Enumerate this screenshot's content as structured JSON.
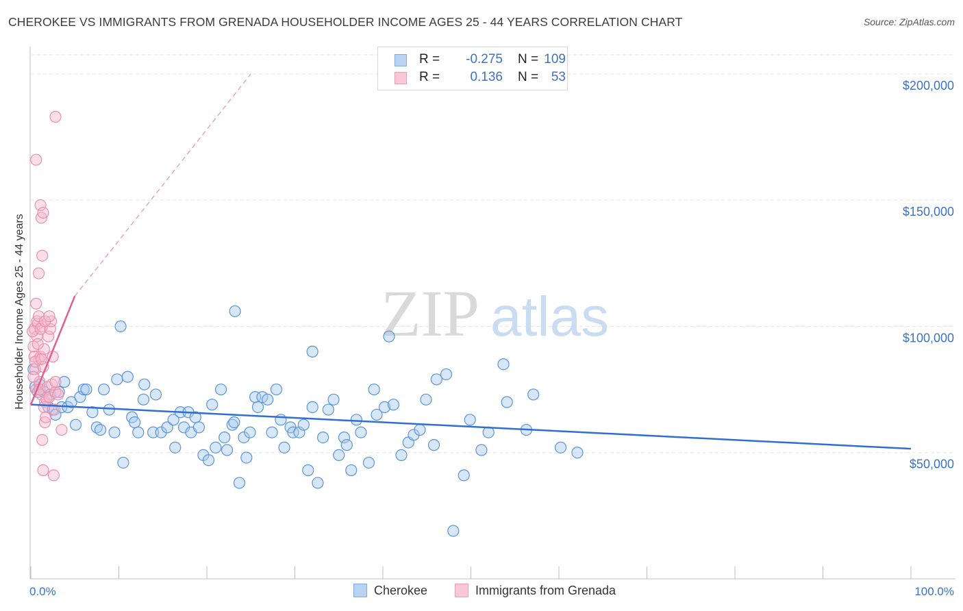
{
  "header": {
    "title": "CHEROKEE VS IMMIGRANTS FROM GRENADA HOUSEHOLDER INCOME AGES 25 - 44 YEARS CORRELATION CHART",
    "source": "Source: ZipAtlas.com"
  },
  "legend": {
    "rows": [
      {
        "r_label": "R =",
        "r_value": "-0.275",
        "n_label": "N =",
        "n_value": "109"
      },
      {
        "r_label": "R =",
        "r_value": "0.136",
        "n_label": "N =",
        "n_value": "53"
      }
    ]
  },
  "bottom_legend": {
    "series_a": "Cherokee",
    "series_b": "Immigrants from Grenada"
  },
  "watermark": {
    "zip": "ZIP",
    "atlas": "atlas"
  },
  "colors": {
    "blue_fill": "#a9c9ef",
    "blue_stroke": "#5a93d8",
    "blue_line": "#2f6fcf",
    "pink_fill": "#f6b8cb",
    "pink_stroke": "#e890ad",
    "pink_line": "#e0608a",
    "axis_text": "#3a72c4",
    "grid": "#e3e3e3"
  },
  "chart_data": {
    "type": "scatter",
    "title": "CHEROKEE VS IMMIGRANTS FROM GRENADA HOUSEHOLDER INCOME AGES 25 - 44 YEARS CORRELATION CHART",
    "xlabel": "",
    "ylabel": "Householder Income Ages 25 - 44 years",
    "xlim": [
      0,
      100
    ],
    "ylim": [
      0,
      210000
    ],
    "x_tick_labels": [
      "0.0%",
      "100.0%"
    ],
    "y_ticks": [
      50000,
      100000,
      150000,
      200000
    ],
    "y_tick_labels": [
      "$50,000",
      "$100,000",
      "$150,000",
      "$200,000"
    ],
    "series": [
      {
        "name": "Cherokee",
        "r": -0.275,
        "n": 109,
        "trend": {
          "x": [
            0,
            100
          ],
          "y": [
            69000,
            51500
          ]
        },
        "points": [
          [
            0.3,
            83000
          ],
          [
            0.5,
            76000
          ],
          [
            0.8,
            74000
          ],
          [
            1.0,
            77000
          ],
          [
            1.5,
            74000
          ],
          [
            2.0,
            68000
          ],
          [
            2.2,
            73000
          ],
          [
            2.5,
            67000
          ],
          [
            2.8,
            65000
          ],
          [
            3.2,
            74000
          ],
          [
            3.5,
            68000
          ],
          [
            3.8,
            78000
          ],
          [
            4.2,
            68000
          ],
          [
            4.6,
            70000
          ],
          [
            5.1,
            61000
          ],
          [
            5.6,
            72000
          ],
          [
            6.0,
            75000
          ],
          [
            6.3,
            75000
          ],
          [
            7.0,
            66000
          ],
          [
            7.5,
            60000
          ],
          [
            7.9,
            59000
          ],
          [
            8.3,
            75000
          ],
          [
            8.9,
            67000
          ],
          [
            9.5,
            58000
          ],
          [
            9.8,
            79000
          ],
          [
            10.2,
            100000
          ],
          [
            10.5,
            46000
          ],
          [
            11.0,
            80000
          ],
          [
            11.5,
            64000
          ],
          [
            11.8,
            62000
          ],
          [
            12.2,
            58000
          ],
          [
            12.8,
            71000
          ],
          [
            12.9,
            77000
          ],
          [
            13.9,
            58000
          ],
          [
            14.2,
            73000
          ],
          [
            14.8,
            58000
          ],
          [
            15.5,
            60000
          ],
          [
            16.2,
            63000
          ],
          [
            16.4,
            52000
          ],
          [
            17.0,
            66000
          ],
          [
            17.4,
            60000
          ],
          [
            17.9,
            66000
          ],
          [
            18.2,
            58000
          ],
          [
            18.7,
            64000
          ],
          [
            19.1,
            60000
          ],
          [
            19.6,
            49000
          ],
          [
            20.2,
            47000
          ],
          [
            20.6,
            69000
          ],
          [
            21.0,
            52000
          ],
          [
            21.6,
            75000
          ],
          [
            22.0,
            56000
          ],
          [
            22.3,
            51000
          ],
          [
            22.9,
            61000
          ],
          [
            23.1,
            62000
          ],
          [
            23.7,
            38000
          ],
          [
            24.2,
            56000
          ],
          [
            24.5,
            48000
          ],
          [
            24.9,
            58000
          ],
          [
            25.5,
            72000
          ],
          [
            25.8,
            68000
          ],
          [
            26.3,
            72000
          ],
          [
            26.9,
            71000
          ],
          [
            27.4,
            58000
          ],
          [
            27.9,
            75000
          ],
          [
            28.4,
            63000
          ],
          [
            28.8,
            52000
          ],
          [
            29.5,
            60000
          ],
          [
            29.8,
            58000
          ],
          [
            30.5,
            58000
          ],
          [
            31.0,
            61000
          ],
          [
            31.5,
            43000
          ],
          [
            32.0,
            68000
          ],
          [
            32.6,
            38000
          ],
          [
            33.2,
            56000
          ],
          [
            33.8,
            67000
          ],
          [
            34.4,
            71000
          ],
          [
            35.0,
            49000
          ],
          [
            35.6,
            56000
          ],
          [
            35.9,
            53000
          ],
          [
            36.4,
            43000
          ],
          [
            37.0,
            63000
          ],
          [
            37.5,
            58000
          ],
          [
            38.4,
            46000
          ],
          [
            39.0,
            75000
          ],
          [
            39.3,
            65000
          ],
          [
            40.2,
            68000
          ],
          [
            40.7,
            96000
          ],
          [
            41.2,
            69000
          ],
          [
            42.1,
            49000
          ],
          [
            42.9,
            54000
          ],
          [
            43.5,
            57000
          ],
          [
            44.2,
            59000
          ],
          [
            44.9,
            71000
          ],
          [
            45.8,
            53000
          ],
          [
            46.1,
            79000
          ],
          [
            47.2,
            81000
          ],
          [
            48.0,
            19000
          ],
          [
            49.2,
            41000
          ],
          [
            49.9,
            63000
          ],
          [
            51.2,
            51000
          ],
          [
            52.0,
            58000
          ],
          [
            53.7,
            85000
          ],
          [
            54.1,
            70000
          ],
          [
            56.3,
            59000
          ],
          [
            57.1,
            73000
          ],
          [
            60.2,
            52000
          ],
          [
            62.1,
            50000
          ],
          [
            23.2,
            106000
          ],
          [
            32.0,
            90000
          ]
        ]
      },
      {
        "name": "Immigrants from Grenada",
        "r": 0.136,
        "n": 53,
        "trend": {
          "x": [
            0,
            5
          ],
          "y": [
            69000,
            112000
          ]
        },
        "trend_extended": {
          "x": [
            5,
            25
          ],
          "y": [
            112000,
            200000
          ]
        },
        "points": [
          [
            0.3,
            92000
          ],
          [
            0.4,
            99000
          ],
          [
            0.5,
            83000
          ],
          [
            0.6,
            75000
          ],
          [
            0.7,
            96000
          ],
          [
            0.8,
            101000
          ],
          [
            0.9,
            87000
          ],
          [
            1.0,
            78000
          ],
          [
            1.1,
            88000
          ],
          [
            1.2,
            73000
          ],
          [
            1.3,
            100000
          ],
          [
            1.4,
            84000
          ],
          [
            1.5,
            91000
          ],
          [
            1.6,
            70000
          ],
          [
            0.2,
            98000
          ],
          [
            0.3,
            80000
          ],
          [
            0.4,
            88000
          ],
          [
            0.5,
            86000
          ],
          [
            0.6,
            109000
          ],
          [
            0.7,
            102000
          ],
          [
            0.8,
            93000
          ],
          [
            0.9,
            104000
          ],
          [
            1.0,
            75000
          ],
          [
            1.1,
            99000
          ],
          [
            1.2,
            87000
          ],
          [
            1.3,
            55000
          ],
          [
            1.4,
            43000
          ],
          [
            1.5,
            68000
          ],
          [
            1.6,
            62000
          ],
          [
            1.7,
            64000
          ],
          [
            1.8,
            71000
          ],
          [
            1.9,
            76000
          ],
          [
            2.0,
            96000
          ],
          [
            2.1,
            72000
          ],
          [
            2.2,
            99000
          ],
          [
            2.3,
            102000
          ],
          [
            2.4,
            77000
          ],
          [
            2.5,
            88000
          ],
          [
            2.6,
            41000
          ],
          [
            2.7,
            67000
          ],
          [
            2.8,
            74000
          ],
          [
            0.6,
            166000
          ],
          [
            0.9,
            121000
          ],
          [
            1.1,
            148000
          ],
          [
            1.2,
            143000
          ],
          [
            1.3,
            128000
          ],
          [
            1.4,
            145000
          ],
          [
            1.6,
            102000
          ],
          [
            2.1,
            104000
          ],
          [
            2.8,
            78000
          ],
          [
            3.1,
            73000
          ],
          [
            3.5,
            59000
          ],
          [
            2.8,
            183000
          ]
        ]
      }
    ]
  }
}
